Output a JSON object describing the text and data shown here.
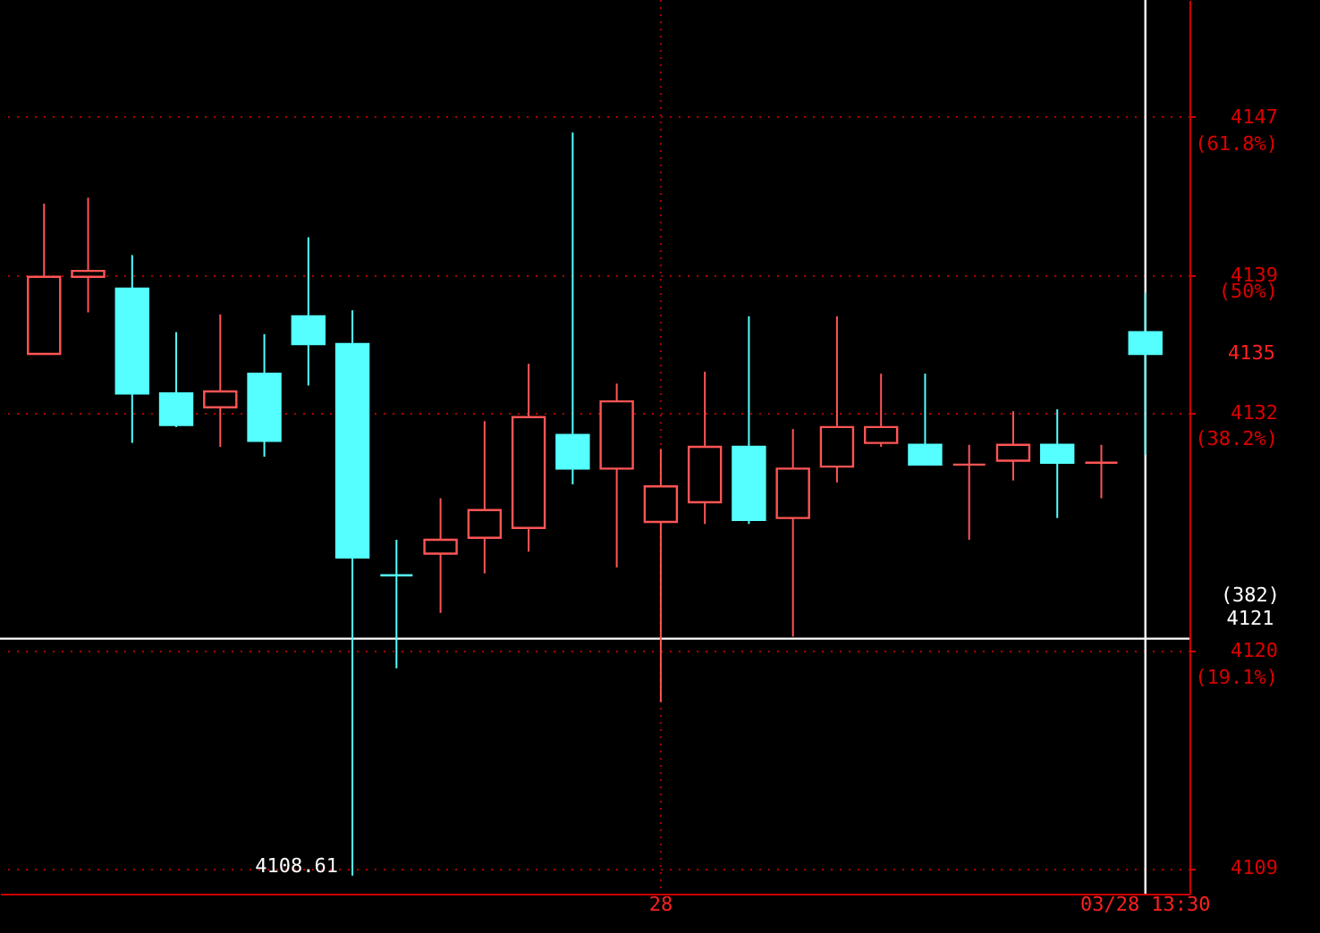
{
  "chart_data": {
    "type": "candlestick",
    "categories": [
      null,
      null,
      null,
      null,
      null,
      null,
      null,
      null,
      null,
      null,
      null,
      null,
      null,
      null,
      "28",
      null,
      null,
      null,
      null,
      null,
      null,
      null,
      null,
      null,
      null,
      "03/28 13:30"
    ],
    "ohlc": [
      [
        4135.0,
        4142.6,
        4135.0,
        4138.9
      ],
      [
        4138.9,
        4142.9,
        4137.1,
        4139.2
      ],
      [
        4138.3,
        4140.0,
        4130.5,
        4133.0
      ],
      [
        4133.0,
        4136.1,
        4131.3,
        4131.4
      ],
      [
        4132.3,
        4137.0,
        4130.3,
        4133.1
      ],
      [
        4134.0,
        4136.0,
        4129.8,
        4130.6
      ],
      [
        4136.9,
        4140.9,
        4133.4,
        4135.5
      ],
      [
        4135.5,
        4137.2,
        4108.61,
        4124.7
      ],
      [
        4123.8,
        4125.6,
        4119.1,
        4123.8
      ],
      [
        4124.9,
        4127.7,
        4121.9,
        4125.6
      ],
      [
        4125.7,
        4131.6,
        4123.9,
        4127.1
      ],
      [
        4126.2,
        4134.5,
        4125.0,
        4131.8
      ],
      [
        4130.9,
        4146.2,
        4128.4,
        4129.2
      ],
      [
        4129.2,
        4133.5,
        4124.2,
        4132.6
      ],
      [
        4126.5,
        4130.2,
        4117.4,
        4128.3
      ],
      [
        4127.5,
        4134.1,
        4126.4,
        4130.3
      ],
      [
        4130.3,
        4136.9,
        4126.4,
        4126.6
      ],
      [
        4126.7,
        4131.2,
        4120.7,
        4129.2
      ],
      [
        4129.3,
        4136.9,
        4128.5,
        4131.3
      ],
      [
        4130.5,
        4134.0,
        4130.3,
        4131.3
      ],
      [
        4130.4,
        4134.0,
        4129.4,
        4129.4
      ],
      [
        4129.4,
        4130.4,
        4125.6,
        4129.4
      ],
      [
        4129.6,
        4132.1,
        4128.6,
        4130.4
      ],
      [
        4130.4,
        4132.2,
        4126.7,
        4129.5
      ],
      [
        4129.5,
        4130.4,
        4127.7,
        4129.5
      ],
      [
        4136.1,
        4138.1,
        4129.9,
        4135.0
      ]
    ],
    "colors": [
      "#ff5555",
      "#ff5555",
      "#55ffff",
      "#55ffff",
      "#ff5555",
      "#55ffff",
      "#55ffff",
      "#55ffff",
      "#55ffff",
      "#ff5555",
      "#ff5555",
      "#ff5555",
      "#55ffff",
      "#ff5555",
      "#ff5555",
      "#ff5555",
      "#55ffff",
      "#ff5555",
      "#ff5555",
      "#ff5555",
      "#55ffff",
      "#ff5555",
      "#ff5555",
      "#55ffff",
      "#ff5555",
      "#55ffff"
    ],
    "ylim": [
      4107.7,
      4152.9
    ],
    "yticks": [
      4109,
      4120,
      4132,
      4139,
      4147
    ],
    "y2lim": [
      1.8,
      73.3
    ],
    "y2ticks": [
      {
        "value": 19.1,
        "label": "(19.1%)"
      },
      {
        "value": 38.2,
        "label": "(38.2%)"
      },
      {
        "value": 50,
        "label": "(50%)"
      },
      {
        "value": 61.8,
        "label": "(61.8%)"
      }
    ],
    "grid": "y",
    "ref_lines": [
      {
        "axis": "x",
        "value": "28",
        "color": "#a00000",
        "line_style": "dotted"
      },
      {
        "axis": "x",
        "value": "03/28 13:30",
        "color": "#ffffff",
        "line_style": "solid"
      },
      {
        "axis": "y",
        "value": 4120.6,
        "label": "(382) 4121",
        "color": "#ffffff",
        "line_style": "solid"
      }
    ],
    "annotations": [
      "4108.61",
      "4135"
    ]
  }
}
